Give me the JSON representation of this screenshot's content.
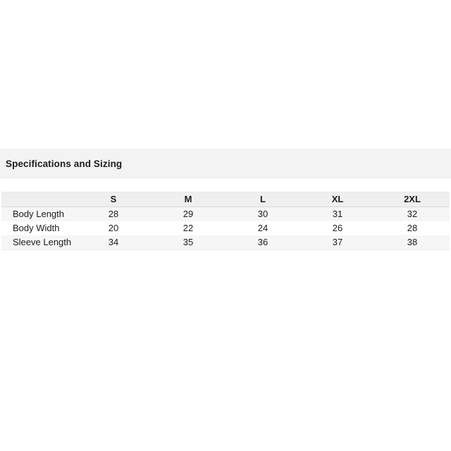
{
  "section": {
    "title": "Specifications and Sizing"
  },
  "table": {
    "columns": [
      "",
      "S",
      "M",
      "L",
      "XL",
      "2XL"
    ],
    "rows": [
      {
        "label": "Body Length",
        "values": [
          "28",
          "29",
          "30",
          "31",
          "32"
        ]
      },
      {
        "label": "Body Width",
        "values": [
          "20",
          "22",
          "24",
          "26",
          "28"
        ]
      },
      {
        "label": "Sleeve Length",
        "values": [
          "34",
          "35",
          "36",
          "37",
          "38"
        ]
      }
    ]
  },
  "colors": {
    "page_bg": "#ffffff",
    "section_header_bg": "#f3f3f3",
    "table_header_bg": "#efefef",
    "row_stripe_bg": "#f6f6f6",
    "header_border": "#d9d9d9",
    "text": "#1c1c1c"
  }
}
